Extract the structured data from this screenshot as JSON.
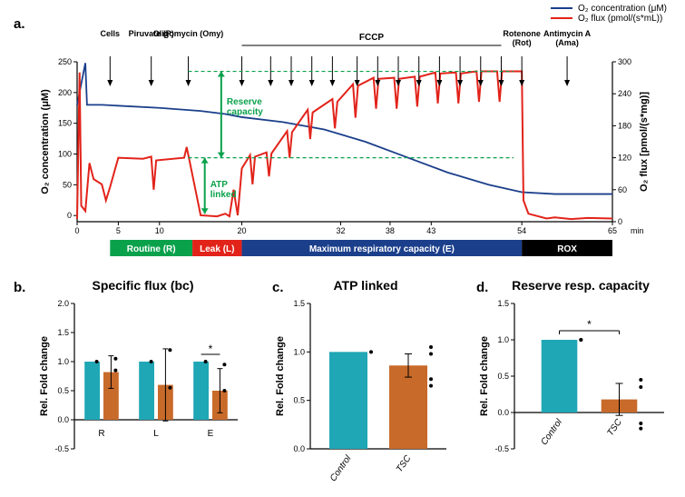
{
  "colors": {
    "o2": "#1b3f8b",
    "flux": "#e2231a",
    "green": "#0aa14b",
    "phase_green": "#0aa14b",
    "phase_red": "#e2231a",
    "phase_blue": "#1b3f8b",
    "phase_black": "#000000",
    "bar_control": "#1fa7b5",
    "bar_tsc": "#c86a2a",
    "axis": "#000000",
    "grid": "#ffffff",
    "bg": "#ffffff"
  },
  "legend": {
    "o2": "O₂ concentration (μM)",
    "flux": "O₂ flux (pmol/(s*mL))"
  },
  "panelA": {
    "label": "a.",
    "x": {
      "min": 0,
      "max": 65,
      "ticks": [
        0,
        5,
        10,
        20,
        32,
        38,
        43,
        54,
        65
      ],
      "label": "min"
    },
    "yLeft": {
      "min": -10,
      "max": 250,
      "ticks": [
        0,
        50,
        100,
        150,
        200,
        250
      ],
      "label": "O₂ concentration (μM)"
    },
    "yRight": {
      "min": 0,
      "max": 300,
      "ticks": [
        0,
        60,
        120,
        180,
        240,
        300
      ],
      "label": "O₂ flux [pmol/(s*mg)]"
    },
    "o2_points": [
      [
        0,
        180
      ],
      [
        1,
        248
      ],
      [
        1.2,
        180
      ],
      [
        3,
        180
      ],
      [
        10,
        175
      ],
      [
        15,
        170
      ],
      [
        18,
        165
      ],
      [
        20,
        160
      ],
      [
        25,
        152
      ],
      [
        30,
        140
      ],
      [
        35,
        120
      ],
      [
        40,
        95
      ],
      [
        45,
        70
      ],
      [
        50,
        50
      ],
      [
        54,
        38
      ],
      [
        58,
        35
      ],
      [
        65,
        35
      ]
    ],
    "flux_points": [
      [
        0,
        5
      ],
      [
        0.3,
        280
      ],
      [
        0.5,
        30
      ],
      [
        1,
        20
      ],
      [
        1.5,
        110
      ],
      [
        2,
        80
      ],
      [
        3,
        70
      ],
      [
        3.5,
        40
      ],
      [
        4,
        65
      ],
      [
        5,
        120
      ],
      [
        8,
        118
      ],
      [
        9,
        122
      ],
      [
        9.3,
        60
      ],
      [
        9.6,
        115
      ],
      [
        13,
        120
      ],
      [
        13.3,
        140
      ],
      [
        13.6,
        118
      ],
      [
        14.5,
        50
      ],
      [
        15,
        12
      ],
      [
        17,
        10
      ],
      [
        18,
        15
      ],
      [
        18.5,
        10
      ],
      [
        19,
        60
      ],
      [
        19.5,
        12
      ],
      [
        20,
        100
      ],
      [
        21,
        125
      ],
      [
        21.3,
        70
      ],
      [
        21.6,
        122
      ],
      [
        23,
        130
      ],
      [
        23.3,
        85
      ],
      [
        23.6,
        128
      ],
      [
        25.5,
        170
      ],
      [
        25.8,
        120
      ],
      [
        26.1,
        168
      ],
      [
        28,
        210
      ],
      [
        28.3,
        155
      ],
      [
        28.6,
        205
      ],
      [
        31,
        230
      ],
      [
        31.3,
        175
      ],
      [
        31.6,
        225
      ],
      [
        33.5,
        258
      ],
      [
        33.8,
        195
      ],
      [
        34.1,
        255
      ],
      [
        36,
        270
      ],
      [
        36.3,
        212
      ],
      [
        36.6,
        268
      ],
      [
        38.5,
        270
      ],
      [
        38.8,
        212
      ],
      [
        39.1,
        268
      ],
      [
        41,
        272
      ],
      [
        41.3,
        216
      ],
      [
        41.6,
        272
      ],
      [
        43.5,
        280
      ],
      [
        43.8,
        222
      ],
      [
        44.1,
        278
      ],
      [
        46,
        280
      ],
      [
        46.3,
        222
      ],
      [
        46.6,
        278
      ],
      [
        48.5,
        282
      ],
      [
        48.8,
        225
      ],
      [
        49.1,
        282
      ],
      [
        51,
        282
      ],
      [
        51.3,
        225
      ],
      [
        51.6,
        282
      ],
      [
        54,
        282
      ],
      [
        54.2,
        40
      ],
      [
        54.8,
        15
      ],
      [
        57,
        6
      ],
      [
        58,
        8
      ],
      [
        60,
        5
      ],
      [
        62,
        7
      ],
      [
        65,
        6
      ]
    ],
    "arrows": [
      {
        "x": 4,
        "label": "Cells"
      },
      {
        "x": 9,
        "label": "Piruvate (P)"
      },
      {
        "x": 13.5,
        "label": "Oligomycin (Omy)"
      },
      {
        "x": 20,
        "group": "FCCP"
      },
      {
        "x": 23.5,
        "group": "FCCP"
      },
      {
        "x": 26,
        "group": "FCCP"
      },
      {
        "x": 28.5,
        "group": "FCCP"
      },
      {
        "x": 31,
        "group": "FCCP"
      },
      {
        "x": 34,
        "group": "FCCP"
      },
      {
        "x": 36.5,
        "group": "FCCP"
      },
      {
        "x": 39,
        "group": "FCCP"
      },
      {
        "x": 41.5,
        "group": "FCCP"
      },
      {
        "x": 44,
        "group": "FCCP"
      },
      {
        "x": 46.5,
        "group": "FCCP"
      },
      {
        "x": 49,
        "group": "FCCP"
      },
      {
        "x": 51.5,
        "group": "FCCP"
      },
      {
        "x": 54,
        "label": "Rotenone\n(Rot)"
      },
      {
        "x": 59.5,
        "label": "Antimycin A\n(Ama)"
      }
    ],
    "fccp_label": "FCCP",
    "reserve_label": "Reserve\ncapacity",
    "atp_label": "ATP\nlinked",
    "phases": [
      {
        "from": 4,
        "to": 14,
        "color": "phase_green",
        "label": "Routine (R)"
      },
      {
        "from": 14,
        "to": 20,
        "color": "phase_red",
        "label": "Leak (L)"
      },
      {
        "from": 20,
        "to": 54,
        "color": "phase_blue",
        "label": "Maximum respiratory capacity (E)"
      },
      {
        "from": 54,
        "to": 65,
        "color": "phase_black",
        "label": "ROX"
      }
    ]
  },
  "panelB": {
    "label": "b.",
    "title": "Specific flux (bc)",
    "ylabel": "Rel. Fold change",
    "ylim": [
      -0.5,
      2.0
    ],
    "yticks": [
      -0.5,
      0.0,
      0.5,
      1.0,
      1.5,
      2.0
    ],
    "groups": [
      "R",
      "L",
      "E"
    ],
    "control": [
      1.0,
      1.0,
      1.0
    ],
    "tsc": [
      0.82,
      0.6,
      0.5
    ],
    "tsc_err": [
      0.28,
      0.62,
      0.38
    ],
    "scatter": {
      "R": [
        0.85,
        1.05
      ],
      "L": [
        1.2,
        0.55
      ],
      "E": [
        0.95,
        0.5
      ]
    },
    "sig": {
      "E": "*"
    }
  },
  "panelC": {
    "label": "c.",
    "title": "ATP linked",
    "ylabel": "Rel. Fold change",
    "ylim": [
      0,
      1.5
    ],
    "yticks": [
      0,
      0.5,
      1.0,
      1.5
    ],
    "cats": [
      "Control",
      "TSC"
    ],
    "vals": [
      1.0,
      0.86
    ],
    "err": [
      0,
      0.12
    ],
    "scatter_control": [
      1.0
    ],
    "scatter_tsc": [
      1.05,
      0.72,
      0.65,
      0.98
    ]
  },
  "panelD": {
    "label": "d.",
    "title": "Reserve resp. capacity",
    "ylabel": "Rel. Fold change",
    "ylim": [
      -0.5,
      1.5
    ],
    "yticks": [
      -0.5,
      0.0,
      0.5,
      1.0,
      1.5
    ],
    "cats": [
      "Control",
      "TSC"
    ],
    "vals": [
      1.0,
      0.18
    ],
    "err": [
      0,
      0.22
    ],
    "scatter_control": [
      1.0,
      1.0
    ],
    "scatter_tsc": [
      0.45,
      0.35,
      -0.15,
      -0.22
    ],
    "sig": "*"
  }
}
